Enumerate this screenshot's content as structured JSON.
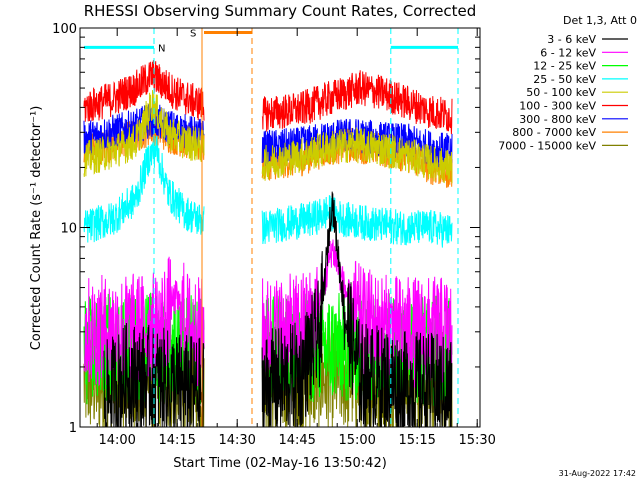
{
  "chart_data": {
    "type": "line",
    "title": "RHESSI Observing Summary Count Rates, Corrected",
    "xlabel": "Start Time (02-May-16 13:50:42)",
    "ylabel": "Corrected Count Rate (s⁻¹ detector⁻¹)",
    "yscale": "log",
    "ylim": [
      1,
      100
    ],
    "x_unit": "minutes after 13:50:42",
    "xlim": [
      0,
      100
    ],
    "x_ticks": [
      {
        "label": "14:00",
        "x": 9.3
      },
      {
        "label": "14:15",
        "x": 24.3
      },
      {
        "label": "14:30",
        "x": 39.3
      },
      {
        "label": "14:45",
        "x": 54.3
      },
      {
        "label": "15:00",
        "x": 69.3
      },
      {
        "label": "15:15",
        "x": 84.3
      },
      {
        "label": "15:30",
        "x": 99.3
      }
    ],
    "y_ticks": [
      {
        "label": "1",
        "value": 1
      },
      {
        "label": "10",
        "value": 10
      },
      {
        "label": "100",
        "value": 100
      }
    ],
    "legend": {
      "title": "Det 1,3, Att 0",
      "position": "outside-right"
    },
    "data_gaps": [
      [
        31,
        45.5
      ]
    ],
    "series": [
      {
        "name": "3 - 6 keV",
        "color": "#000000",
        "x": [
          6,
          12,
          18,
          24,
          29.5,
          46,
          55,
          60,
          63,
          66,
          70,
          76,
          80,
          86,
          93
        ],
        "y": [
          1.4,
          1.8,
          1.7,
          1.6,
          1.5,
          1.6,
          1.8,
          3.0,
          14.0,
          4.0,
          1.8,
          1.7,
          1.6,
          1.6,
          1.5
        ]
      },
      {
        "name": "6 - 12 keV",
        "color": "#ff00ff",
        "x": [
          1,
          10,
          20,
          24,
          27,
          29.5,
          46,
          54,
          58,
          61,
          63,
          66,
          70,
          76,
          82,
          88,
          93
        ],
        "y": [
          3.0,
          3.1,
          3.2,
          4.5,
          3.2,
          3.0,
          3.0,
          3.1,
          3.4,
          5.0,
          8.0,
          5.0,
          3.4,
          3.1,
          3.0,
          3.0,
          3.0
        ]
      },
      {
        "name": "12 - 25 keV",
        "color": "#00ff00",
        "x": [
          1,
          10,
          20,
          29.5,
          46,
          60,
          75,
          93
        ],
        "y": [
          2.4,
          2.5,
          2.5,
          2.4,
          2.4,
          2.5,
          2.5,
          2.4
        ]
      },
      {
        "name": "25 - 50 keV",
        "color": "#00ffff",
        "x": [
          1,
          8,
          14,
          17,
          19,
          22,
          26,
          29.5,
          46,
          52,
          58,
          62,
          66,
          72,
          80,
          88,
          93
        ],
        "y": [
          10,
          11,
          14,
          22,
          25,
          15,
          12,
          11,
          10,
          10.5,
          11,
          12,
          11,
          10.5,
          10,
          10,
          9.5
        ]
      },
      {
        "name": "50 - 100 keV",
        "color": "#cccc00",
        "x": [
          1,
          8,
          14,
          16,
          18,
          22,
          26,
          29.5,
          46,
          55,
          62,
          68,
          75,
          82,
          88,
          93
        ],
        "y": [
          22,
          24,
          27,
          33,
          42,
          30,
          27,
          26,
          21,
          23,
          25,
          26,
          25,
          23,
          21,
          20
        ]
      },
      {
        "name": "100 - 300 keV",
        "color": "#ff0000",
        "x": [
          1,
          8,
          14,
          18,
          20,
          24,
          29.5,
          46,
          55,
          62,
          66,
          70,
          76,
          82,
          88,
          93
        ],
        "y": [
          40,
          44,
          50,
          58,
          54,
          47,
          42,
          37,
          39,
          44,
          47,
          50,
          47,
          42,
          38,
          36
        ]
      },
      {
        "name": "300 - 800 keV",
        "color": "#0000ff",
        "x": [
          1,
          8,
          14,
          18,
          22,
          29.5,
          46,
          55,
          62,
          68,
          74,
          82,
          88,
          93
        ],
        "y": [
          28,
          30,
          32,
          35,
          32,
          29,
          25,
          26,
          28,
          29,
          28,
          27,
          25,
          24
        ]
      },
      {
        "name": "800 - 7000 keV",
        "color": "#ff8000",
        "x": [
          1,
          8,
          14,
          18,
          22,
          29.5,
          46,
          55,
          62,
          68,
          74,
          82,
          88,
          93
        ],
        "y": [
          24,
          26,
          29,
          32,
          29,
          26,
          21,
          22,
          25,
          26,
          25,
          23,
          20,
          19
        ]
      },
      {
        "name": "7000 - 15000 keV",
        "color": "#808000",
        "x": [
          1,
          6,
          12,
          18,
          24,
          29.5,
          46,
          55,
          62,
          66,
          70,
          76,
          82,
          88,
          93
        ],
        "y": [
          1.7,
          1.7,
          1.8,
          1.8,
          1.7,
          1.7,
          1.7,
          1.7,
          1.8,
          1.8,
          1.7,
          1.7,
          1.7,
          1.7,
          1.7
        ]
      }
    ],
    "annotations": [
      {
        "label": "N",
        "type": "night",
        "color": "#00ffff",
        "ranges": [
          [
            1,
            18.5
          ],
          [
            77.7,
            94.5
          ]
        ],
        "line_x": [
          18.5,
          77.7,
          94.5
        ],
        "level": 80
      },
      {
        "label": "S",
        "type": "saa",
        "color": "#ff8000",
        "ranges": [
          [
            31,
            43
          ]
        ],
        "line_x": [
          30.5,
          43
        ],
        "level": 95
      }
    ]
  },
  "footer": {
    "date": "31-Aug-2022 17:42"
  }
}
